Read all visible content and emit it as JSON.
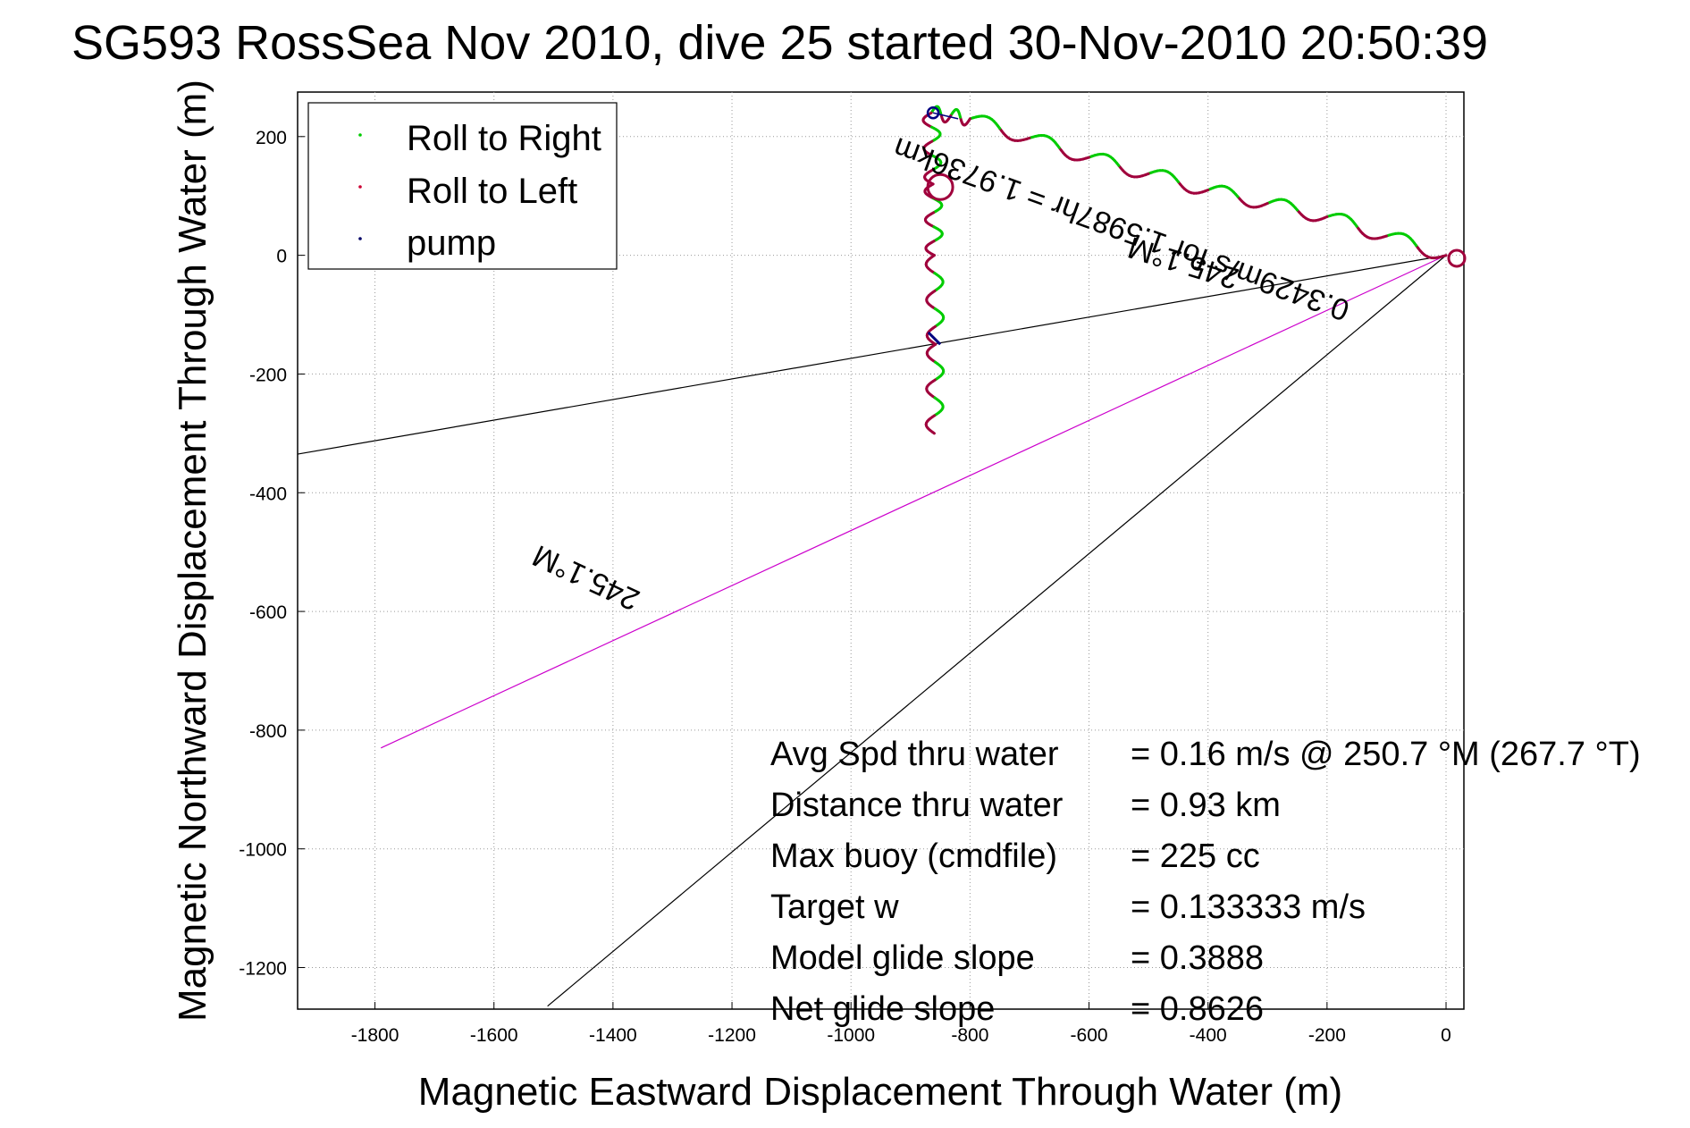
{
  "chart_data": {
    "type": "scatter",
    "title": "SG593 RossSea Nov 2010, dive 25 started 30-Nov-2010 20:50:39",
    "xlabel": "Magnetic Eastward Displacement Through Water (m)",
    "ylabel": "Magnetic Northward Displacement Through Water (m)",
    "xlim": [
      -1930,
      30
    ],
    "ylim": [
      -1270,
      275
    ],
    "xticks": [
      -1800,
      -1600,
      -1400,
      -1200,
      -1000,
      -800,
      -600,
      -400,
      -200,
      0
    ],
    "yticks": [
      200,
      0,
      -200,
      -400,
      -600,
      -800,
      -1000,
      -1200
    ],
    "grid": true,
    "legend_position": "top-left",
    "legend": [
      {
        "label": "Roll to Right",
        "color": "#00cc00"
      },
      {
        "label": "Roll to Left",
        "color": "#cc0033"
      },
      {
        "label": "pump",
        "color": "#000066"
      }
    ],
    "track_colors": {
      "right": "#00cc00",
      "left": "#a0003c",
      "pump": "#000080"
    },
    "track": {
      "start": [
        0,
        0
      ],
      "east_leg_end": [
        -865,
        240
      ],
      "south_leg_end": [
        -860,
        -300
      ],
      "description_points_east": [
        [
          0,
          0
        ],
        [
          -200,
          65
        ],
        [
          -400,
          110
        ],
        [
          -600,
          165
        ],
        [
          -800,
          230
        ],
        [
          -865,
          240
        ]
      ],
      "description_points_south": [
        [
          -865,
          240
        ],
        [
          -862,
          120
        ],
        [
          -860,
          0
        ],
        [
          -858,
          -150
        ],
        [
          -860,
          -300
        ]
      ]
    },
    "lines": [
      {
        "name": "line-a",
        "color": "#000000",
        "from": [
          0,
          0
        ],
        "to": [
          -1930,
          -335
        ]
      },
      {
        "name": "line-b",
        "color": "#cc00cc",
        "from": [
          0,
          0
        ],
        "to": [
          -1790,
          -830
        ]
      },
      {
        "name": "line-c",
        "color": "#000000",
        "from": [
          0,
          0
        ],
        "to": [
          -1510,
          -1265
        ]
      }
    ],
    "annotations": {
      "heading_top": "245.1°M",
      "vector_label": "0.3429m/s for 1.5987hr = 1.9736km",
      "heading_bottom": "245.1°M"
    },
    "stats": [
      {
        "label": "Avg Spd thru water",
        "value": "=  0.16 m/s @ 250.7 °M (267.7 °T)"
      },
      {
        "label": "Distance thru water",
        "value": "=  0.93 km"
      },
      {
        "label": "Max buoy (cmdfile)",
        "value": "= 225 cc"
      },
      {
        "label": "Target w",
        "value": "= 0.133333 m/s"
      },
      {
        "label": "Model glide slope",
        "value": "= 0.3888"
      },
      {
        "label": "Net glide slope",
        "value": "= 0.8626"
      }
    ]
  }
}
